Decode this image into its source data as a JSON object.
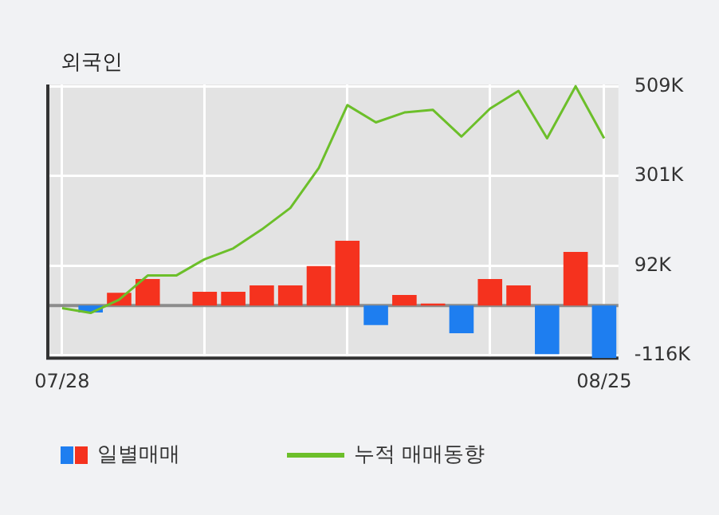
{
  "chart_data": {
    "type": "bar",
    "title": "외국인",
    "categories": [
      "07/28",
      null,
      null,
      null,
      null,
      null,
      null,
      null,
      null,
      null,
      null,
      null,
      null,
      null,
      null,
      null,
      null,
      null,
      null,
      "08/25"
    ],
    "series": [
      {
        "name": "일별매매",
        "colors": [
          "#f5321e",
          "#1e7ef0",
          "#f5321e",
          "#f5321e",
          "#f5321e",
          "#f5321e",
          "#f5321e",
          "#f5321e",
          "#f5321e",
          "#f5321e",
          "#f5321e",
          "#1e7ef0",
          "#f5321e",
          "#f5321e",
          "#1e7ef0",
          "#f5321e",
          "#f5321e",
          "#1e7ef0",
          "#f5321e",
          "#1e7ef0"
        ],
        "values": [
          0,
          -16000,
          30000,
          62000,
          0,
          32000,
          32000,
          47000,
          47000,
          92000,
          151000,
          -45000,
          25000,
          5000,
          -64000,
          62000,
          47000,
          -113000,
          125000,
          -122000
        ]
      },
      {
        "name": "누적 매매동향",
        "type": "line",
        "color": "#6cbf2a",
        "values": [
          -6000,
          -17000,
          14000,
          70000,
          70000,
          108000,
          133000,
          177000,
          227000,
          320000,
          466000,
          426000,
          449000,
          455000,
          393000,
          458000,
          499000,
          389000,
          510000,
          389000
        ]
      }
    ],
    "ylim": [
      -122000,
      514000
    ],
    "yticks": [
      {
        "value": -116000,
        "label": "-116K"
      },
      {
        "value": 92000,
        "label": "92K"
      },
      {
        "value": 301000,
        "label": "301K"
      },
      {
        "value": 509000,
        "label": "509K"
      }
    ],
    "grid": true,
    "legend": "bottom",
    "marker": "none"
  }
}
